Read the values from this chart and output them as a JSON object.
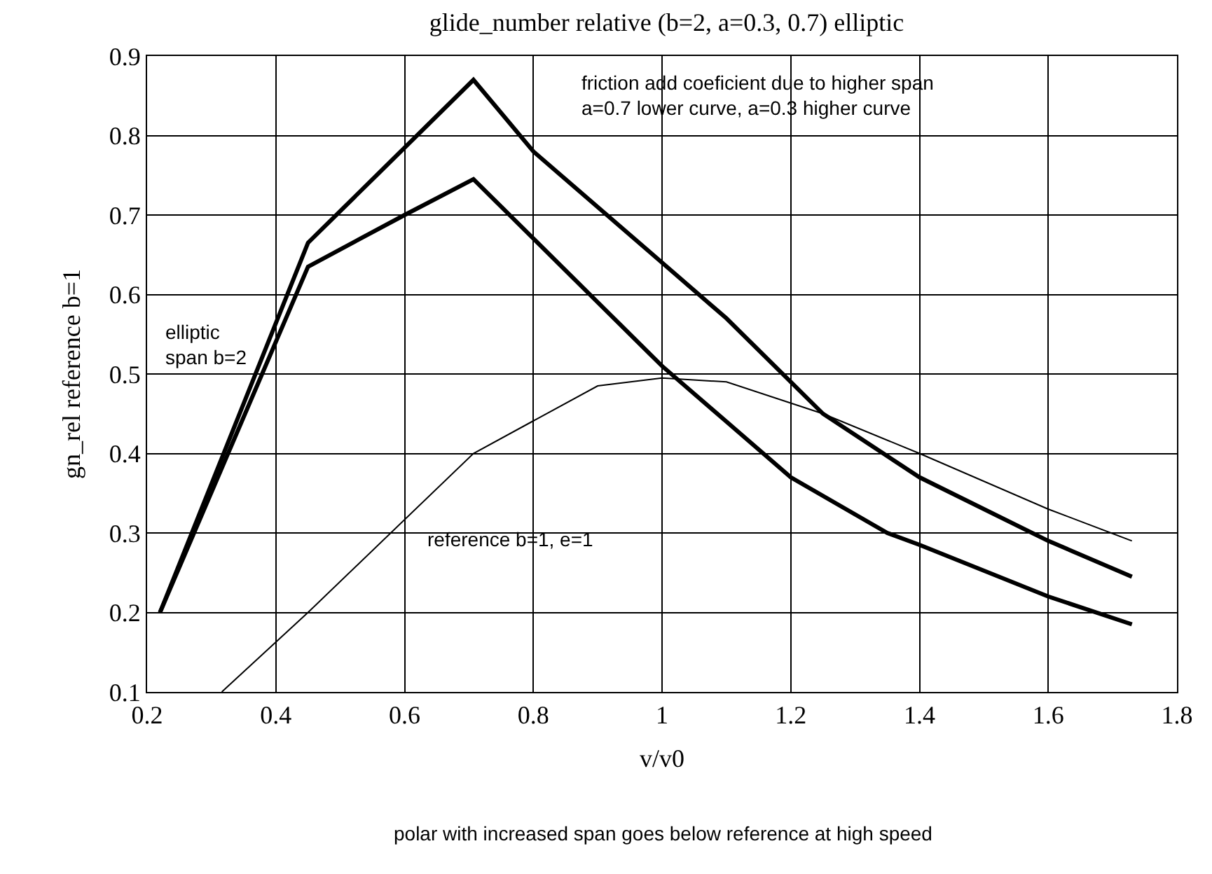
{
  "chart_data": {
    "type": "line",
    "title": "glide_number relative (b=2, a=0.3, 0.7) elliptic",
    "xlabel": "v/v0",
    "ylabel": "gn_rel reference b=1",
    "xlim": [
      0.2,
      1.8
    ],
    "xticks": [
      0.2,
      0.4,
      0.6,
      0.8,
      1,
      1.2,
      1.4,
      1.6,
      1.8
    ],
    "ylim": [
      0.1,
      0.9
    ],
    "yticks": [
      0.1,
      0.2,
      0.3,
      0.4,
      0.5,
      0.6,
      0.7,
      0.8,
      0.9
    ],
    "grid": true,
    "marker": "none",
    "line_style": "solid",
    "series": [
      {
        "color": "#000000",
        "x": [
          0.22,
          0.45,
          0.707,
          0.8,
          1.0,
          1.1,
          1.2,
          1.25,
          1.4,
          1.6,
          1.73
        ],
        "values": [
          0.2,
          0.665,
          0.87,
          0.78,
          0.64,
          0.57,
          0.49,
          0.45,
          0.37,
          0.29,
          0.245
        ]
      },
      {
        "color": "#000000",
        "x": [
          0.22,
          0.45,
          0.6,
          0.707,
          1.0,
          1.1,
          1.2,
          1.35,
          1.4,
          1.6,
          1.73
        ],
        "values": [
          0.2,
          0.635,
          0.7,
          0.745,
          0.51,
          0.44,
          0.37,
          0.3,
          0.285,
          0.22,
          0.185
        ]
      },
      {
        "color": "#000000",
        "x": [
          0.316,
          0.45,
          0.707,
          0.9,
          1.0,
          1.1,
          1.25,
          1.4,
          1.6,
          1.73
        ],
        "values": [
          0.1,
          0.2,
          0.4,
          0.485,
          0.495,
          0.49,
          0.45,
          0.4,
          0.33,
          0.29
        ]
      }
    ],
    "annotations": [
      "friction add coeficient due to higher span\na=0.7 lower curve, a=0.3 higher curve",
      "elliptic\nspan b=2",
      "reference b=1, e=1",
      "polar with increased span goes below reference at high speed"
    ]
  }
}
